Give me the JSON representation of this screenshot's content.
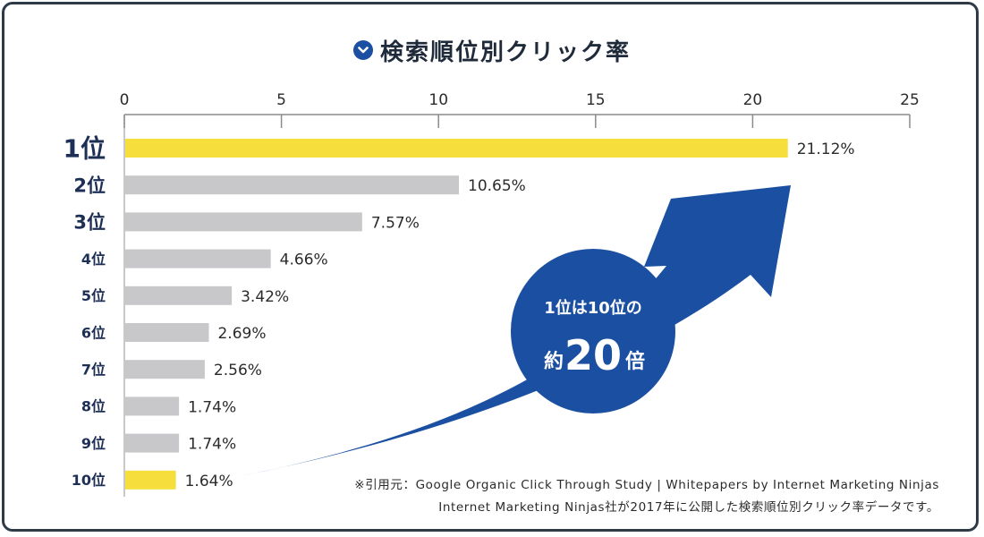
{
  "title": "検索順位別クリック率",
  "title_icon": "chevron-down-circle-icon",
  "colors": {
    "highlight": "#f6df3c",
    "bar": "#c8c8ca",
    "arrow": "#1a4fa1",
    "rank_text": "#1e2f56",
    "frame": "#2e3a46"
  },
  "chart_data": {
    "type": "bar",
    "orientation": "horizontal",
    "categories": [
      "1位",
      "2位",
      "3位",
      "4位",
      "5位",
      "6位",
      "7位",
      "8位",
      "9位",
      "10位"
    ],
    "values": [
      21.12,
      10.65,
      7.57,
      4.66,
      3.42,
      2.69,
      2.56,
      1.74,
      1.74,
      1.64
    ],
    "value_labels": [
      "21.12%",
      "10.65%",
      "7.57%",
      "4.66%",
      "3.42%",
      "2.69%",
      "2.56%",
      "1.74%",
      "1.74%",
      "1.64%"
    ],
    "highlighted": [
      "1位",
      "10位"
    ],
    "xlim": [
      0,
      25
    ],
    "xticks": [
      "0",
      "5",
      "10",
      "15",
      "20",
      "25"
    ],
    "xtick_values": [
      0,
      5,
      10,
      15,
      20,
      25
    ],
    "axis_position": "top",
    "legend": "none"
  },
  "callout": {
    "line1": "1位は10位の",
    "line2_prefix": "約",
    "line2_number": "20",
    "line2_suffix": "倍"
  },
  "source": {
    "line1": "※引用元：Google Organic Click Through Study | Whitepapers by Internet Marketing Ninjas",
    "line2": "Internet Marketing Ninjas社が2017年に公開した検索順位別クリック率データです。"
  }
}
